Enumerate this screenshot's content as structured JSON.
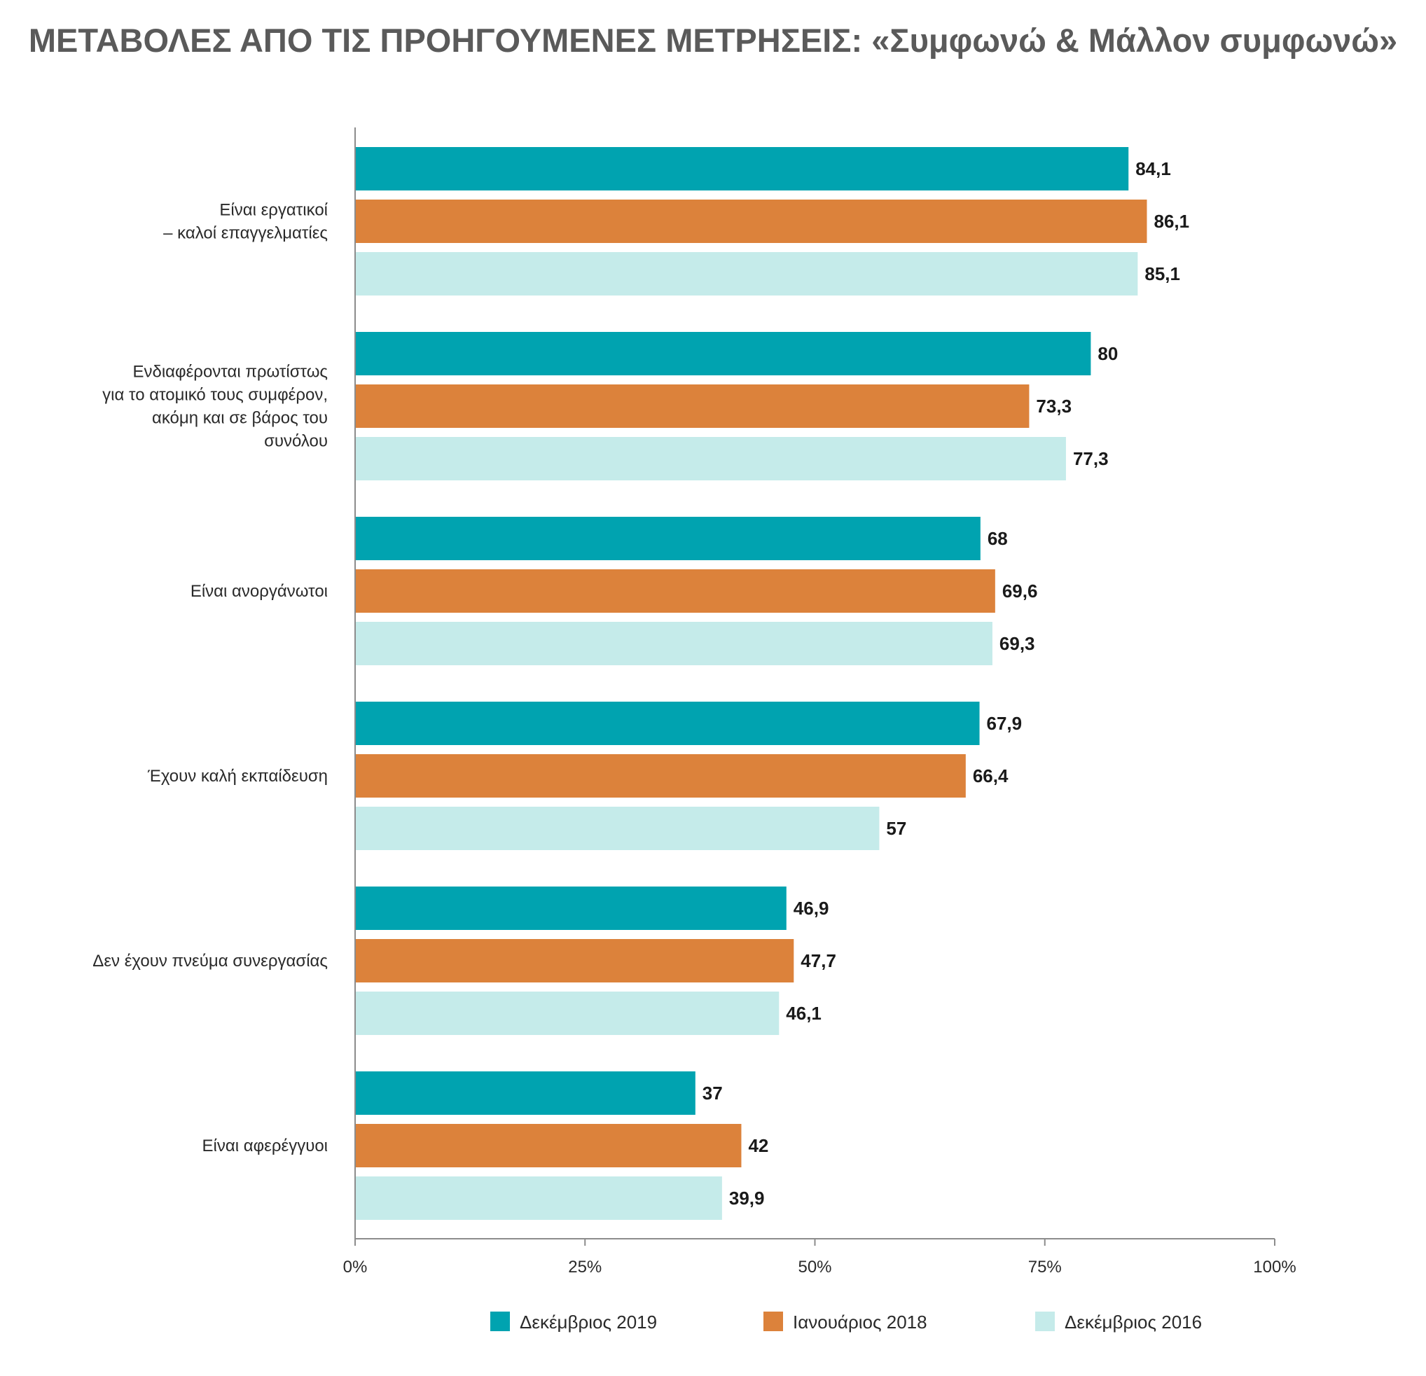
{
  "chart_data": {
    "type": "bar",
    "orientation": "horizontal",
    "title": "ΜΕΤΑΒΟΛΕΣ ΑΠΟ ΤΙΣ ΠΡΟΗΓΟΥΜΕΝΕΣ ΜΕΤΡΗΣΕΙΣ: «Συμφωνώ & Μάλλον συμφωνώ»",
    "categories": [
      [
        "Είναι εργατικοί",
        "– καλοί επαγγελματίες"
      ],
      [
        "Ενδιαφέρονται πρωτίστως",
        "για το ατομικό τους συμφέρον,",
        "ακόμη και σε βάρος του",
        "συνόλου"
      ],
      [
        "Είναι ανοργάνωτοι"
      ],
      [
        "Έχουν καλή εκπαίδευση"
      ],
      [
        "Δεν έχουν πνεύμα συνεργασίας"
      ],
      [
        "Είναι αφερέγγυοι"
      ]
    ],
    "series": [
      {
        "name": "Δεκέμβριος 2019",
        "color": "#00a3b0",
        "values": [
          84.1,
          80,
          68,
          67.9,
          46.9,
          37
        ]
      },
      {
        "name": "Ιανουάριος 2018",
        "color": "#dc823b",
        "values": [
          86.1,
          73.3,
          69.6,
          66.4,
          47.7,
          42
        ]
      },
      {
        "name": "Δεκέμβριος 2016",
        "color": "#c5ebea",
        "values": [
          85.1,
          77.3,
          69.3,
          57,
          46.1,
          39.9
        ]
      }
    ],
    "value_labels": [
      [
        "84,1",
        "80",
        "68",
        "67,9",
        "46,9",
        "37"
      ],
      [
        "86,1",
        "73,3",
        "69,6",
        "66,4",
        "47,7",
        "42"
      ],
      [
        "85,1",
        "77,3",
        "69,3",
        "57",
        "46,1",
        "39,9"
      ]
    ],
    "xlim": [
      0,
      100
    ],
    "xticks": [
      0,
      25,
      50,
      75,
      100
    ],
    "xtick_labels": [
      "0%",
      "25%",
      "50%",
      "75%",
      "100%"
    ],
    "grid": false,
    "legend_position": "bottom"
  }
}
